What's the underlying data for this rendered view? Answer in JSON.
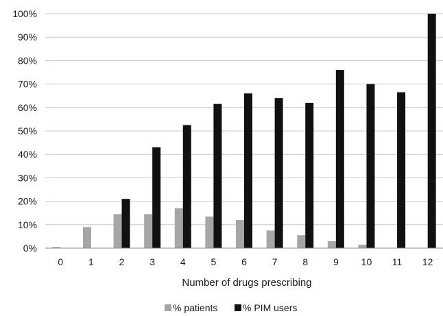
{
  "chart_data": {
    "type": "bar",
    "categories": [
      "0",
      "1",
      "2",
      "3",
      "4",
      "5",
      "6",
      "7",
      "8",
      "9",
      "10",
      "11",
      "12"
    ],
    "series": [
      {
        "name": "% patients",
        "color": "#a6a6a6",
        "values": [
          0.5,
          9,
          14.5,
          14.5,
          17,
          13.5,
          12,
          7.5,
          5.5,
          3,
          1.5,
          0,
          0
        ]
      },
      {
        "name": "% PIM users",
        "color": "#111111",
        "values": [
          0,
          0,
          21,
          43,
          52.5,
          61.5,
          66,
          64,
          62,
          76,
          70,
          66.5,
          100
        ]
      }
    ],
    "yticks": [
      "0%",
      "10%",
      "20%",
      "30%",
      "40%",
      "50%",
      "60%",
      "70%",
      "80%",
      "90%",
      "100%"
    ],
    "ylim": [
      0,
      100
    ],
    "xlabel": "Number of drugs prescribing",
    "ylabel": "",
    "grid": true,
    "legend_position": "bottom"
  }
}
